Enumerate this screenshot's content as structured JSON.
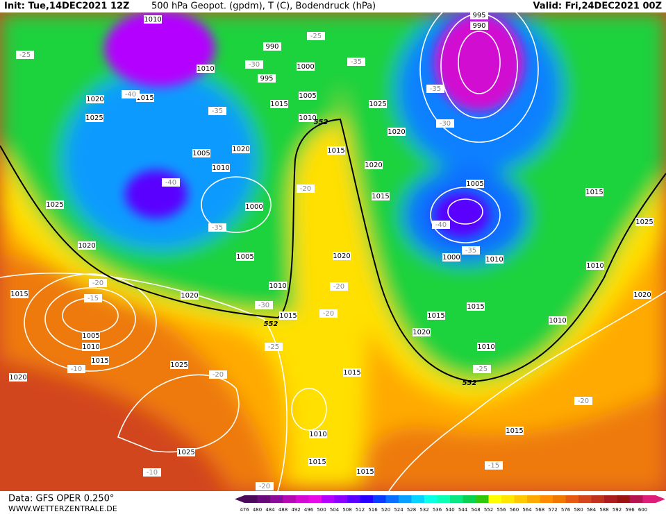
{
  "header": {
    "init": "Init: Tue,14DEC2021 12Z",
    "title": "500 hPa Geopot. (gpdm), T (C), Bodendruck (hPa)",
    "valid": "Valid: Fri,24DEC2021 00Z"
  },
  "footer": {
    "data_source": "Data: GFS OPER 0.250°",
    "website": "WWW.WETTERZENTRALE.DE"
  },
  "map": {
    "isobar_labels": [
      "1010",
      "990",
      "1010",
      "995",
      "1000",
      "1005",
      "1015",
      "1010",
      "1015",
      "1020",
      "1025",
      "1025",
      "1020",
      "1015",
      "1005",
      "1010",
      "1020",
      "1020",
      "1015",
      "1000",
      "1025",
      "1020",
      "1005",
      "1010",
      "1020",
      "1015",
      "1015",
      "1005",
      "1010",
      "1015",
      "1020",
      "1025",
      "1025",
      "1010",
      "1015",
      "1015",
      "1015",
      "1020",
      "1015",
      "1015",
      "1020",
      "1010",
      "1010",
      "1000",
      "1010",
      "1005",
      "1010",
      "1015",
      "1020",
      "1025",
      "1015",
      "990",
      "995"
    ],
    "temperature_labels": [
      "-25",
      "-25",
      "-30",
      "-35",
      "-35",
      "-40",
      "-35",
      "-20",
      "-20",
      "-20",
      "-30",
      "-25",
      "-20",
      "-15",
      "-10",
      "-20",
      "-10",
      "-20",
      "-35",
      "-30",
      "-40",
      "-35",
      "-25",
      "-20",
      "-15",
      "-40"
    ],
    "height_labels": [
      "552",
      "552",
      "552"
    ]
  },
  "color_scale": {
    "labels": [
      476,
      480,
      484,
      488,
      492,
      496,
      500,
      504,
      508,
      512,
      516,
      520,
      524,
      528,
      532,
      536,
      540,
      544,
      548,
      552,
      556,
      560,
      564,
      568,
      572,
      576,
      580,
      584,
      588,
      592,
      596,
      600
    ],
    "colors": [
      "#4b0a5a",
      "#6a0a7a",
      "#8a0a9a",
      "#b40ab4",
      "#d20ad2",
      "#e60ae6",
      "#b400ff",
      "#8c00ff",
      "#5a00ff",
      "#2800ff",
      "#0a3cff",
      "#0a6eff",
      "#0aa0ff",
      "#0ad2ff",
      "#0affe6",
      "#0affb4",
      "#0ae682",
      "#0ad250",
      "#32c80a",
      "#ffff00",
      "#ffe600",
      "#ffc800",
      "#ffaa00",
      "#ff8c00",
      "#f07800",
      "#e65a14",
      "#d2461e",
      "#be321e",
      "#aa1e1e",
      "#9a1414",
      "#b41450",
      "#dc1e78"
    ]
  }
}
